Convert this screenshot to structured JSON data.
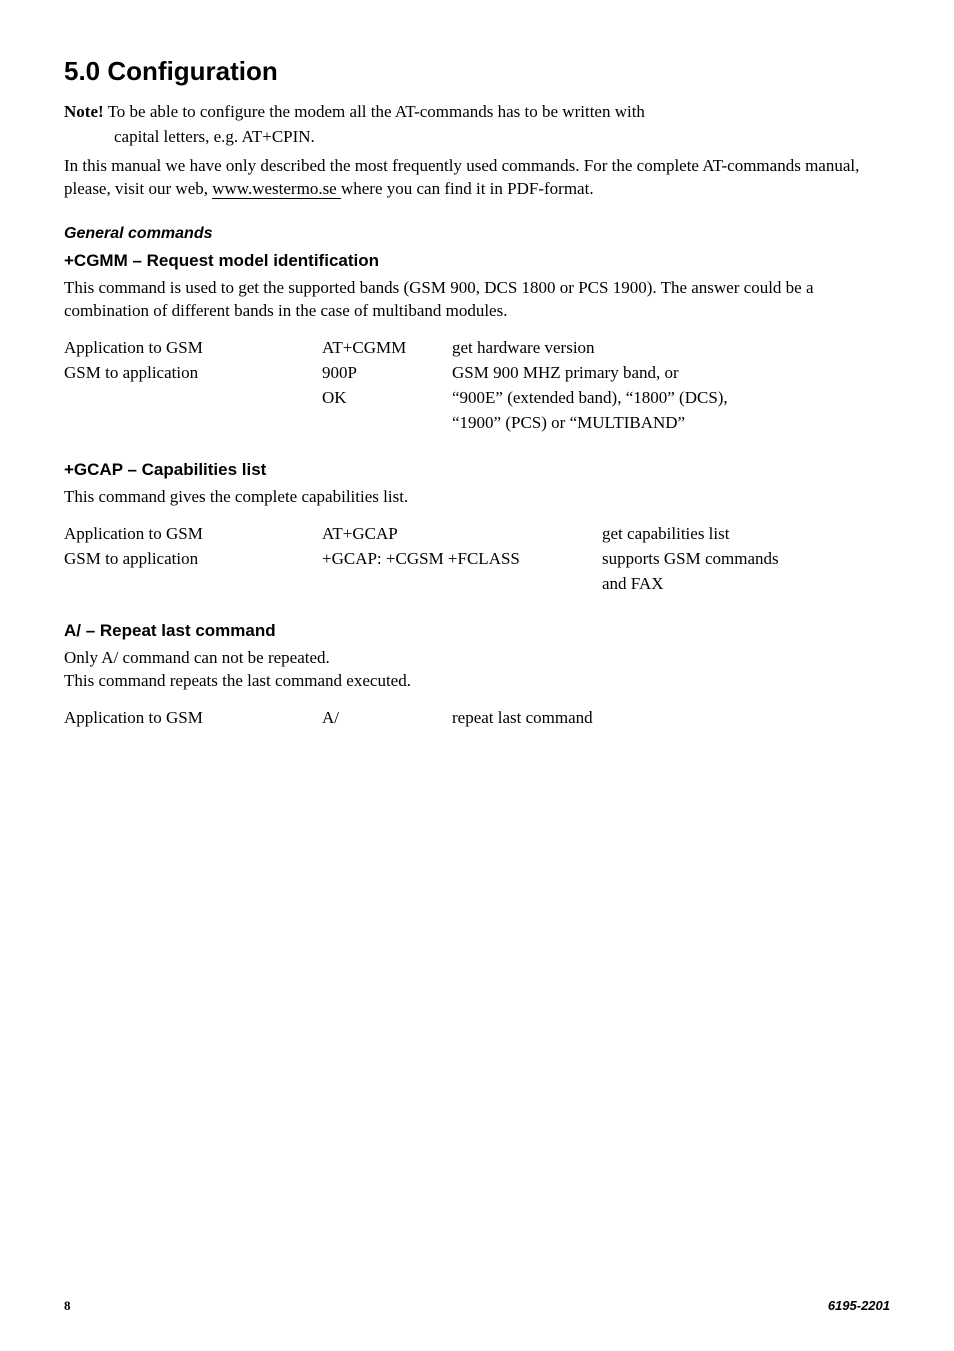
{
  "heading": "5.0 Configuration",
  "note": {
    "label": "Note!",
    "line1": " To be able to configure the modem all the AT-commands has to be written with",
    "line2": "capital letters, e.g. AT+CPIN."
  },
  "intro": {
    "part1": "In this manual we have only described the most frequently used commands. For the complete AT-commands manual, please, visit our web, ",
    "link": "www.westermo.se ",
    "part2": "where you can find it in PDF-format."
  },
  "general": {
    "title": "General commands",
    "cgmm": {
      "title": "+CGMM – Request model identification",
      "desc": "This command is used to get the supported bands (GSM 900, DCS 1800 or PCS 1900). The answer could be a combination of different bands in the case of multiband modules.",
      "r1c1": "Application to GSM",
      "r1c2": "AT+CGMM",
      "r1c3": "get hardware version",
      "r2c1": "GSM to application",
      "r2c2": "900P",
      "r2c3": "GSM 900 MHZ primary band, or",
      "r3c2": "OK",
      "r3c3": "“900E” (extended band), “1800” (DCS),",
      "r4c3": "“1900” (PCS) or “MULTIBAND”"
    },
    "gcap": {
      "title": "+GCAP – Capabilities list",
      "desc": "This command gives the complete capabilities list.",
      "r1c1": "Application to GSM",
      "r1c2": "AT+GCAP",
      "r1c3": "get capabilities list",
      "r2c1": "GSM to application",
      "r2c2": "+GCAP: +CGSM +FCLASS",
      "r2c3": "supports GSM commands",
      "r3c3": "and FAX"
    },
    "repeat": {
      "title": "A/ – Repeat last command",
      "desc1": "Only A/ command can not be repeated.",
      "desc2": "This command repeats the last command executed.",
      "r1c1": "Application to GSM",
      "r1c2": "A/",
      "r1c3": "repeat last command"
    }
  },
  "footer": {
    "page": "8",
    "doc": "6195-2201"
  }
}
